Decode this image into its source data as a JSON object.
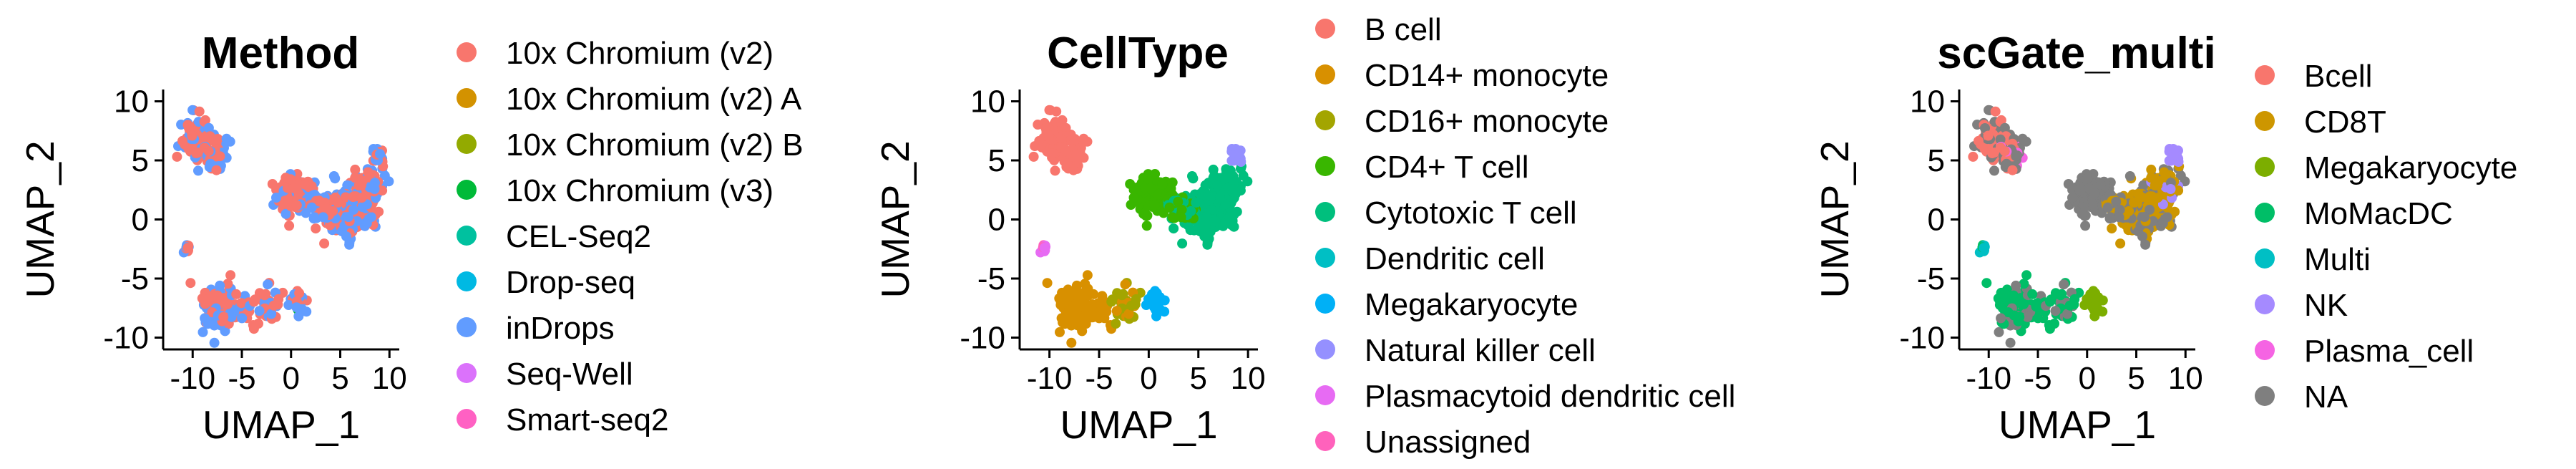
{
  "chart_data": [
    {
      "type": "scatter",
      "title": "Method",
      "xlabel": "UMAP_1",
      "ylabel": "UMAP_2",
      "xlim": [
        -13,
        11
      ],
      "ylim": [
        -11,
        11
      ],
      "xticks": [
        "-10",
        "-5",
        "0",
        "5",
        "10"
      ],
      "yticks": [
        "10",
        "5",
        "0",
        "-5",
        "-10"
      ],
      "grid": false,
      "legend_position": "right",
      "series": [
        {
          "name": "10x Chromium (v2)",
          "color": "#F8766D"
        },
        {
          "name": "10x Chromium (v2) A",
          "color": "#D39200"
        },
        {
          "name": "10x Chromium (v2) B",
          "color": "#93AA00"
        },
        {
          "name": "10x Chromium (v3)",
          "color": "#00BA38"
        },
        {
          "name": "CEL-Seq2",
          "color": "#00C19F"
        },
        {
          "name": "Drop-seq",
          "color": "#00B9E3"
        },
        {
          "name": "inDrops",
          "color": "#619CFF"
        },
        {
          "name": "Seq-Well",
          "color": "#DB72FB"
        },
        {
          "name": "Smart-seq2",
          "color": "#FF61C3"
        }
      ]
    },
    {
      "type": "scatter",
      "title": "CellType",
      "xlabel": "UMAP_1",
      "ylabel": "UMAP_2",
      "xlim": [
        -13,
        11
      ],
      "ylim": [
        -11,
        11
      ],
      "xticks": [
        "-10",
        "-5",
        "0",
        "5",
        "10"
      ],
      "yticks": [
        "10",
        "5",
        "0",
        "-5",
        "-10"
      ],
      "grid": false,
      "legend_position": "right",
      "series": [
        {
          "name": "B cell",
          "color": "#F8766D"
        },
        {
          "name": "CD14+ monocyte",
          "color": "#D89000"
        },
        {
          "name": "CD16+ monocyte",
          "color": "#A3A500"
        },
        {
          "name": "CD4+ T cell",
          "color": "#39B600"
        },
        {
          "name": "Cytotoxic T cell",
          "color": "#00BF7D"
        },
        {
          "name": "Dendritic cell",
          "color": "#00BFC4"
        },
        {
          "name": "Megakaryocyte",
          "color": "#00B0F6"
        },
        {
          "name": "Natural killer cell",
          "color": "#9590FF"
        },
        {
          "name": "Plasmacytoid dendritic cell",
          "color": "#E76BF3"
        },
        {
          "name": "Unassigned",
          "color": "#FF62BC"
        }
      ]
    },
    {
      "type": "scatter",
      "title": "scGate_multi",
      "xlabel": "UMAP_1",
      "ylabel": "UMAP_2",
      "xlim": [
        -13,
        11
      ],
      "ylim": [
        -11,
        11
      ],
      "xticks": [
        "-10",
        "-5",
        "0",
        "5",
        "10"
      ],
      "yticks": [
        "10",
        "5",
        "0",
        "-5",
        "-10"
      ],
      "grid": false,
      "legend_position": "right",
      "series": [
        {
          "name": "Bcell",
          "color": "#F8766D"
        },
        {
          "name": "CD8T",
          "color": "#CD9600"
        },
        {
          "name": "Megakaryocyte",
          "color": "#7CAE00"
        },
        {
          "name": "MoMacDC",
          "color": "#00BE67"
        },
        {
          "name": "Multi",
          "color": "#00BFC4"
        },
        {
          "name": "NK",
          "color": "#A58AFF"
        },
        {
          "name": "Plasma_cell",
          "color": "#F564E3"
        },
        {
          "name": "NA",
          "color": "#7F7F7F"
        }
      ]
    }
  ]
}
